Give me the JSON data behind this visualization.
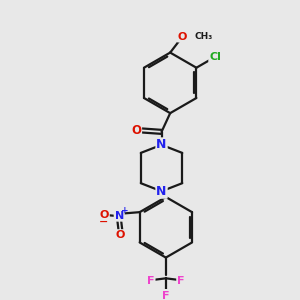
{
  "background_color": "#e8e8e8",
  "bond_color": "#1a1a1a",
  "atom_colors": {
    "O": "#dd1100",
    "N": "#2222ee",
    "Cl": "#22aa22",
    "F": "#ee44cc",
    "C": "#1a1a1a"
  },
  "figsize": [
    3.0,
    3.0
  ],
  "dpi": 100,
  "xlim": [
    0,
    10
  ],
  "ylim": [
    0,
    10
  ]
}
